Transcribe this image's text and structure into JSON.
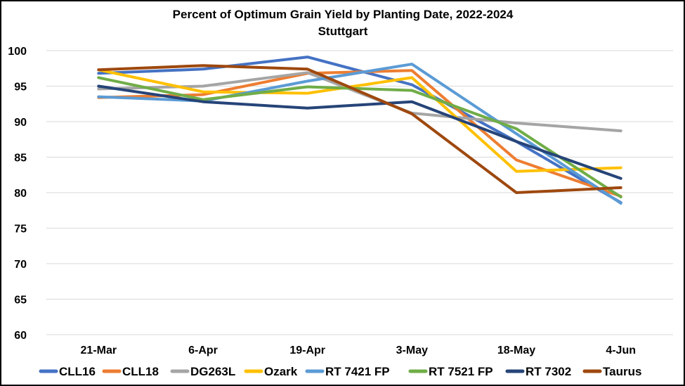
{
  "chart_data": {
    "type": "line",
    "title": "Percent of Optimum Grain Yield by Planting Date, 2022-2024",
    "subtitle": "Stuttgart",
    "xlabel": "",
    "ylabel": "",
    "categories": [
      "21-Mar",
      "6-Apr",
      "19-Apr",
      "3-May",
      "18-May",
      "4-Jun"
    ],
    "ylim": [
      60,
      100
    ],
    "yticks": [
      60,
      65,
      70,
      75,
      80,
      85,
      90,
      95,
      100
    ],
    "grid": true,
    "legend_position": "bottom",
    "series": [
      {
        "name": "CLL16",
        "color": "#4472C4",
        "values": [
          96.8,
          97.4,
          99.1,
          95.2,
          87.2,
          78.6
        ]
      },
      {
        "name": "CLL18",
        "color": "#ED7D31",
        "values": [
          93.4,
          93.8,
          96.8,
          97.2,
          84.6,
          79.5
        ]
      },
      {
        "name": "DG263L",
        "color": "#A5A5A5",
        "values": [
          94.6,
          95.0,
          96.9,
          91.2,
          89.8,
          88.7
        ]
      },
      {
        "name": "Ozark",
        "color": "#FFC000",
        "values": [
          97.3,
          94.2,
          94.0,
          96.2,
          83.0,
          83.5
        ]
      },
      {
        "name": "RT 7421 FP",
        "color": "#5B9BD5",
        "values": [
          93.5,
          92.9,
          95.7,
          98.1,
          88.3,
          78.5
        ]
      },
      {
        "name": "RT 7521 FP",
        "color": "#70AD47",
        "values": [
          96.2,
          93.1,
          94.9,
          94.4,
          89.0,
          79.4
        ]
      },
      {
        "name": "RT 7302",
        "color": "#264478",
        "values": [
          95.0,
          92.8,
          91.9,
          92.8,
          87.2,
          82.0
        ]
      },
      {
        "name": "Taurus",
        "color": "#9E480E",
        "values": [
          97.3,
          97.9,
          97.4,
          91.1,
          80.0,
          80.7
        ]
      }
    ]
  }
}
